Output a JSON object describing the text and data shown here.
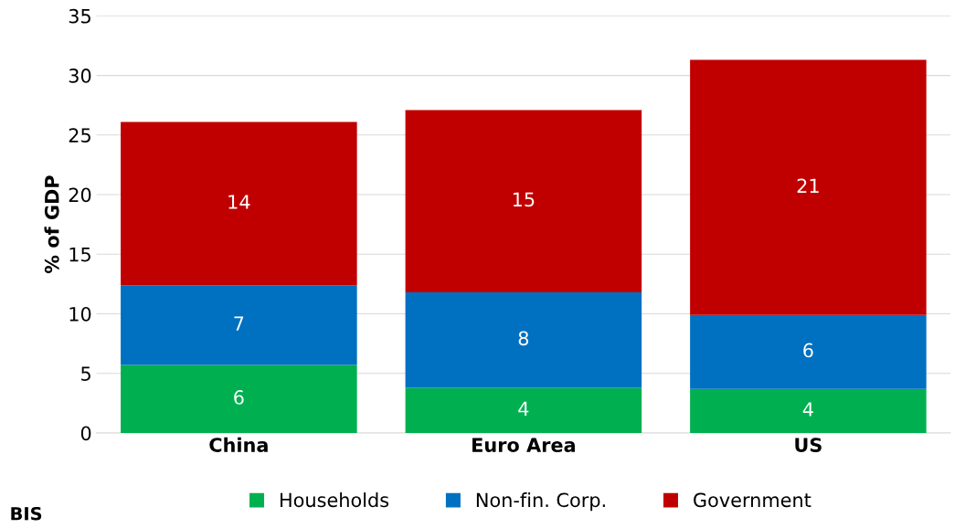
{
  "chart_data": {
    "type": "bar",
    "stacked": true,
    "ylabel": "% of GDP",
    "categories": [
      "China",
      "Euro Area",
      "US"
    ],
    "series": [
      {
        "name": "Households",
        "color": "#00b050",
        "values": [
          5.7,
          3.8,
          3.7
        ],
        "value_labels": [
          "6",
          "4",
          "4"
        ]
      },
      {
        "name": "Non-fin. Corp.",
        "color": "#0070c0",
        "values": [
          6.7,
          8.0,
          6.2
        ],
        "value_labels": [
          "7",
          "8",
          "6"
        ]
      },
      {
        "name": "Government",
        "color": "#c00000",
        "values": [
          13.7,
          15.3,
          21.4
        ],
        "value_labels": [
          "14",
          "15",
          "21"
        ]
      }
    ],
    "ylim": [
      0,
      35
    ],
    "yticks": [
      0,
      5,
      10,
      15,
      20,
      25,
      30,
      35
    ],
    "grid": "y",
    "legend": "bottom",
    "annotations": [
      "BIS"
    ]
  }
}
